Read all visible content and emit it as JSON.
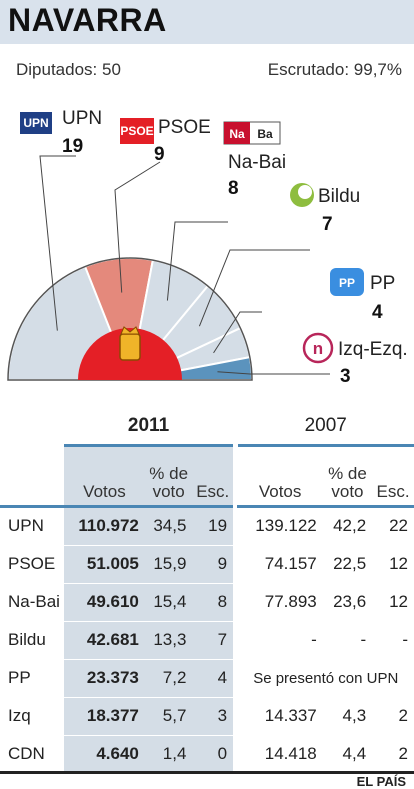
{
  "title": "NAVARRA",
  "meta": {
    "deputies": "Diputados: 50",
    "counted": "Escrutado: 99,7%"
  },
  "source": "EL PAÍS",
  "colors": {
    "header_band": "#d9e2ec",
    "seat_default": "#d4dde6",
    "psoe_highlight": "#e4897c",
    "pp_highlight": "#5b93bd",
    "center_red": "#e41f26",
    "table_blue": "#4a86b4"
  },
  "chart_data": {
    "type": "pie",
    "subtype": "semicircle-parliament",
    "total_seats": 50,
    "series": [
      {
        "name": "UPN",
        "seats": 19,
        "logo": "UPN"
      },
      {
        "name": "PSOE",
        "seats": 9,
        "logo": "PSOE"
      },
      {
        "name": "Na-Bai",
        "seats": 8,
        "logo": "Na Ba"
      },
      {
        "name": "Bildu",
        "seats": 7,
        "logo": "bildu-swirl-icon"
      },
      {
        "name": "PP",
        "seats": 4,
        "logo": "PP"
      },
      {
        "name": "Izq-Ezq.",
        "seats": 3,
        "logo": "n"
      }
    ]
  },
  "table": {
    "years": [
      "2011",
      "2007"
    ],
    "headers": {
      "votes": "Votos",
      "pct_top": "% de",
      "pct_bottom": "voto",
      "seats": "Esc."
    },
    "rows": [
      {
        "party": "UPN",
        "v11": "110.972",
        "p11": "34,5",
        "s11": "19",
        "v07": "139.122",
        "p07": "42,2",
        "s07": "22"
      },
      {
        "party": "PSOE",
        "v11": "51.005",
        "p11": "15,9",
        "s11": "9",
        "v07": "74.157",
        "p07": "22,5",
        "s07": "12"
      },
      {
        "party": "Na-Bai",
        "v11": "49.610",
        "p11": "15,4",
        "s11": "8",
        "v07": "77.893",
        "p07": "23,6",
        "s07": "12"
      },
      {
        "party": "Bildu",
        "v11": "42.681",
        "p11": "13,3",
        "s11": "7",
        "v07": "-",
        "p07": "-",
        "s07": "-"
      },
      {
        "party": "PP",
        "v11": "23.373",
        "p11": "7,2",
        "s11": "4",
        "note07": "Se presentó con UPN"
      },
      {
        "party": "Izq",
        "v11": "18.377",
        "p11": "5,7",
        "s11": "3",
        "v07": "14.337",
        "p07": "4,3",
        "s07": "2"
      },
      {
        "party": "CDN",
        "v11": "4.640",
        "p11": "1,4",
        "s11": "0",
        "v07": "14.418",
        "p07": "4,4",
        "s07": "2"
      }
    ]
  }
}
